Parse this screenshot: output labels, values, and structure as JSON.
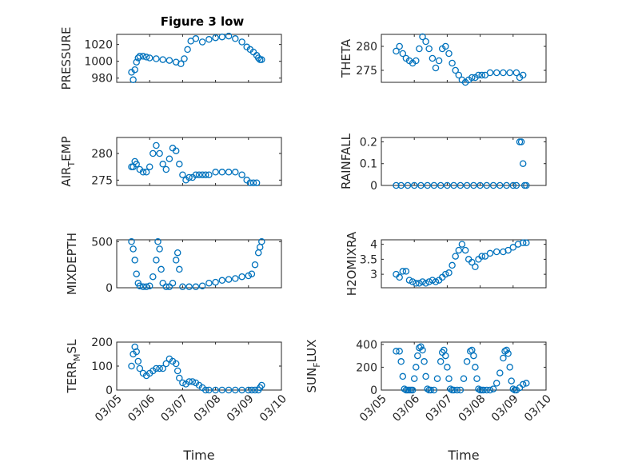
{
  "chart_data": [
    {
      "type": "scatter",
      "title": "Figure 3 low",
      "ylabel": "PRESSURE",
      "xlim": [
        0,
        5
      ],
      "ylim": [
        975,
        1032
      ],
      "yticks": [
        980,
        1000,
        1020
      ],
      "yticklabels": [
        "980",
        "1000",
        "1020"
      ],
      "xtick_labels_shown": false,
      "grid": true,
      "series": [
        {
          "name": "PRESSURE",
          "x": [
            0.45,
            0.5,
            0.55,
            0.6,
            0.65,
            0.7,
            0.8,
            0.9,
            1.0,
            1.2,
            1.4,
            1.6,
            1.8,
            1.95,
            2.05,
            2.15,
            2.25,
            2.4,
            2.6,
            2.8,
            3.0,
            3.2,
            3.4,
            3.6,
            3.8,
            3.95,
            4.05,
            4.15,
            4.25,
            4.3,
            4.35,
            4.4
          ],
          "y": [
            987,
            978,
            990,
            999,
            1004,
            1006,
            1006,
            1005,
            1004,
            1003,
            1002,
            1001,
            999,
            997,
            1003,
            1014,
            1024,
            1027,
            1023,
            1026,
            1028,
            1029,
            1030,
            1027,
            1023,
            1017,
            1014,
            1011,
            1007,
            1004,
            1002,
            1002
          ]
        }
      ]
    },
    {
      "type": "scatter",
      "title": "",
      "ylabel": "THETA",
      "xlim": [
        0,
        5
      ],
      "ylim": [
        272.5,
        282.5
      ],
      "yticks": [
        275,
        280
      ],
      "yticklabels": [
        "275",
        "280"
      ],
      "xtick_labels_shown": false,
      "grid": true,
      "series": [
        {
          "name": "THETA",
          "x": [
            0.45,
            0.55,
            0.65,
            0.75,
            0.85,
            0.95,
            1.05,
            1.15,
            1.25,
            1.35,
            1.45,
            1.55,
            1.65,
            1.75,
            1.85,
            1.95,
            2.05,
            2.15,
            2.25,
            2.35,
            2.45,
            2.55,
            2.65,
            2.75,
            2.85,
            2.95,
            3.05,
            3.15,
            3.3,
            3.5,
            3.7,
            3.9,
            4.1,
            4.2,
            4.3
          ],
          "y": [
            279,
            280,
            278.5,
            277.5,
            277,
            276.5,
            277,
            279.5,
            282,
            281,
            279.5,
            277.5,
            275.5,
            277,
            279.5,
            280,
            278.5,
            276.5,
            275,
            274,
            273,
            272.5,
            273,
            273.5,
            273.5,
            274,
            274,
            274,
            274.5,
            274.5,
            274.5,
            274.5,
            274.5,
            273.5,
            274
          ]
        }
      ]
    },
    {
      "type": "scatter",
      "title": "",
      "ylabel": "AIR_TEMP",
      "xlim": [
        0,
        5
      ],
      "ylim": [
        274,
        283
      ],
      "yticks": [
        275,
        280
      ],
      "yticklabels": [
        "275",
        "280"
      ],
      "xtick_labels_shown": false,
      "grid": true,
      "series": [
        {
          "name": "AIR_TEMP",
          "x": [
            0.45,
            0.5,
            0.55,
            0.6,
            0.7,
            0.8,
            0.9,
            1.0,
            1.1,
            1.2,
            1.3,
            1.4,
            1.5,
            1.6,
            1.7,
            1.8,
            1.9,
            2.0,
            2.1,
            2.2,
            2.3,
            2.4,
            2.5,
            2.6,
            2.7,
            2.8,
            3.0,
            3.2,
            3.4,
            3.6,
            3.8,
            3.95,
            4.05,
            4.15,
            4.25
          ],
          "y": [
            277.5,
            277.5,
            278.5,
            278,
            277,
            276.5,
            276.5,
            277.5,
            280,
            281.5,
            280,
            278,
            277,
            279,
            281,
            280.5,
            278,
            276,
            275,
            275.5,
            275.5,
            276,
            276,
            276,
            276,
            276,
            276.5,
            276.5,
            276.5,
            276.5,
            276,
            275,
            274.5,
            274.5,
            274.5
          ]
        }
      ]
    },
    {
      "type": "scatter",
      "title": "",
      "ylabel": "RAINFALL",
      "xlim": [
        0,
        5
      ],
      "ylim": [
        0,
        0.22
      ],
      "yticks": [
        0,
        0.1,
        0.2
      ],
      "yticklabels": [
        "0",
        "0.1",
        "0.2"
      ],
      "xtick_labels_shown": false,
      "grid": true,
      "series": [
        {
          "name": "RAINFALL",
          "x": [
            0.45,
            0.6,
            0.8,
            1.0,
            1.2,
            1.4,
            1.6,
            1.8,
            2.0,
            2.2,
            2.4,
            2.6,
            2.8,
            3.0,
            3.2,
            3.4,
            3.6,
            3.8,
            4.0,
            4.1,
            4.2,
            4.25,
            4.3,
            4.35,
            4.4
          ],
          "y": [
            0,
            0,
            0,
            0,
            0,
            0,
            0,
            0,
            0,
            0,
            0,
            0,
            0,
            0,
            0,
            0,
            0,
            0,
            0,
            0,
            0.2,
            0.2,
            0.1,
            0,
            0
          ]
        }
      ]
    },
    {
      "type": "scatter",
      "title": "",
      "ylabel": "MIXDEPTH",
      "xlim": [
        0,
        5
      ],
      "ylim": [
        0,
        520
      ],
      "yticks": [
        0,
        500
      ],
      "yticklabels": [
        "0",
        "500"
      ],
      "xtick_labels_shown": false,
      "grid": true,
      "series": [
        {
          "name": "MIXDEPTH",
          "x": [
            0.45,
            0.5,
            0.55,
            0.6,
            0.65,
            0.7,
            0.8,
            0.9,
            1.0,
            1.1,
            1.2,
            1.25,
            1.3,
            1.35,
            1.4,
            1.5,
            1.6,
            1.7,
            1.8,
            1.85,
            1.9,
            2.0,
            2.2,
            2.4,
            2.6,
            2.8,
            3.0,
            3.2,
            3.4,
            3.6,
            3.8,
            4.0,
            4.1,
            4.2,
            4.3,
            4.35,
            4.4
          ],
          "y": [
            500,
            420,
            300,
            150,
            50,
            20,
            10,
            10,
            20,
            120,
            300,
            500,
            420,
            200,
            50,
            10,
            10,
            50,
            300,
            380,
            200,
            10,
            10,
            10,
            20,
            50,
            60,
            80,
            90,
            100,
            120,
            130,
            150,
            250,
            380,
            440,
            500
          ]
        }
      ]
    },
    {
      "type": "scatter",
      "title": "",
      "ylabel": "H2OMIXRA",
      "xlim": [
        0,
        5
      ],
      "ylim": [
        2.55,
        4.15
      ],
      "yticks": [
        3,
        3.5,
        4
      ],
      "yticklabels": [
        "3",
        "3.5",
        "4"
      ],
      "xtick_labels_shown": false,
      "grid": true,
      "series": [
        {
          "name": "H2OMIXRA",
          "x": [
            0.45,
            0.55,
            0.65,
            0.75,
            0.85,
            0.95,
            1.05,
            1.15,
            1.25,
            1.35,
            1.45,
            1.55,
            1.65,
            1.75,
            1.85,
            1.95,
            2.05,
            2.15,
            2.25,
            2.35,
            2.45,
            2.55,
            2.65,
            2.75,
            2.85,
            2.95,
            3.05,
            3.15,
            3.3,
            3.5,
            3.7,
            3.85,
            4.0,
            4.15,
            4.3,
            4.4
          ],
          "y": [
            3.0,
            2.9,
            3.1,
            3.1,
            2.8,
            2.75,
            2.7,
            2.7,
            2.75,
            2.7,
            2.75,
            2.8,
            2.75,
            2.8,
            2.9,
            3.0,
            3.05,
            3.3,
            3.6,
            3.8,
            4.0,
            3.8,
            3.5,
            3.4,
            3.25,
            3.5,
            3.6,
            3.6,
            3.7,
            3.75,
            3.75,
            3.8,
            3.9,
            4.0,
            4.05,
            4.05
          ]
        }
      ]
    },
    {
      "type": "scatter",
      "title": "",
      "ylabel": "TERR_MSL",
      "xlim": [
        0,
        5
      ],
      "ylim": [
        0,
        200
      ],
      "yticks": [
        0,
        100,
        200
      ],
      "yticklabels": [
        "0",
        "100",
        "200"
      ],
      "xtick_labels": [
        "03/05",
        "03/06",
        "03/07",
        "03/08",
        "03/09",
        "03/10"
      ],
      "xtick_positions": [
        0,
        1,
        2,
        3,
        4,
        5
      ],
      "xlabel": "Time",
      "grid": true,
      "series": [
        {
          "name": "TERR_MSL",
          "x": [
            0.45,
            0.5,
            0.55,
            0.6,
            0.65,
            0.7,
            0.8,
            0.9,
            1.0,
            1.1,
            1.2,
            1.3,
            1.4,
            1.5,
            1.6,
            1.7,
            1.8,
            1.85,
            1.9,
            2.0,
            2.1,
            2.2,
            2.3,
            2.4,
            2.5,
            2.6,
            2.7,
            2.8,
            3.0,
            3.2,
            3.4,
            3.6,
            3.8,
            4.0,
            4.1,
            4.2,
            4.3,
            4.35,
            4.4
          ],
          "y": [
            100,
            150,
            180,
            160,
            120,
            90,
            70,
            60,
            70,
            80,
            90,
            90,
            90,
            110,
            130,
            120,
            110,
            80,
            50,
            30,
            25,
            35,
            35,
            30,
            20,
            10,
            0,
            0,
            0,
            0,
            0,
            0,
            0,
            0,
            0,
            0,
            0,
            10,
            20
          ]
        }
      ]
    },
    {
      "type": "scatter",
      "title": "",
      "ylabel": "SUN_FLUX",
      "xlim": [
        0,
        5
      ],
      "ylim": [
        0,
        420
      ],
      "yticks": [
        0,
        200,
        400
      ],
      "yticklabels": [
        "0",
        "200",
        "400"
      ],
      "xtick_labels": [
        "03/05",
        "03/06",
        "03/07",
        "03/08",
        "03/09",
        "03/10"
      ],
      "xtick_positions": [
        0,
        1,
        2,
        3,
        4,
        5
      ],
      "xlabel": "Time",
      "grid": true,
      "series": [
        {
          "name": "SUN_FLUX",
          "x": [
            0.45,
            0.55,
            0.6,
            0.65,
            0.7,
            0.75,
            0.8,
            0.85,
            0.9,
            0.95,
            1.0,
            1.05,
            1.1,
            1.15,
            1.2,
            1.25,
            1.3,
            1.35,
            1.4,
            1.45,
            1.5,
            1.6,
            1.7,
            1.8,
            1.85,
            1.9,
            1.95,
            2.0,
            2.05,
            2.1,
            2.15,
            2.2,
            2.3,
            2.4,
            2.5,
            2.6,
            2.7,
            2.75,
            2.8,
            2.85,
            2.9,
            2.95,
            3.0,
            3.05,
            3.1,
            3.2,
            3.3,
            3.4,
            3.5,
            3.6,
            3.7,
            3.75,
            3.8,
            3.85,
            3.9,
            3.95,
            4.0,
            4.05,
            4.1,
            4.2,
            4.3,
            4.4
          ],
          "y": [
            340,
            340,
            250,
            120,
            10,
            0,
            0,
            0,
            0,
            0,
            100,
            200,
            300,
            370,
            380,
            350,
            250,
            120,
            10,
            0,
            0,
            0,
            100,
            250,
            330,
            350,
            300,
            200,
            100,
            10,
            0,
            0,
            0,
            0,
            100,
            250,
            340,
            350,
            300,
            200,
            100,
            10,
            0,
            0,
            0,
            0,
            0,
            10,
            60,
            150,
            280,
            340,
            350,
            320,
            200,
            80,
            10,
            0,
            0,
            20,
            50,
            60
          ]
        }
      ]
    }
  ]
}
